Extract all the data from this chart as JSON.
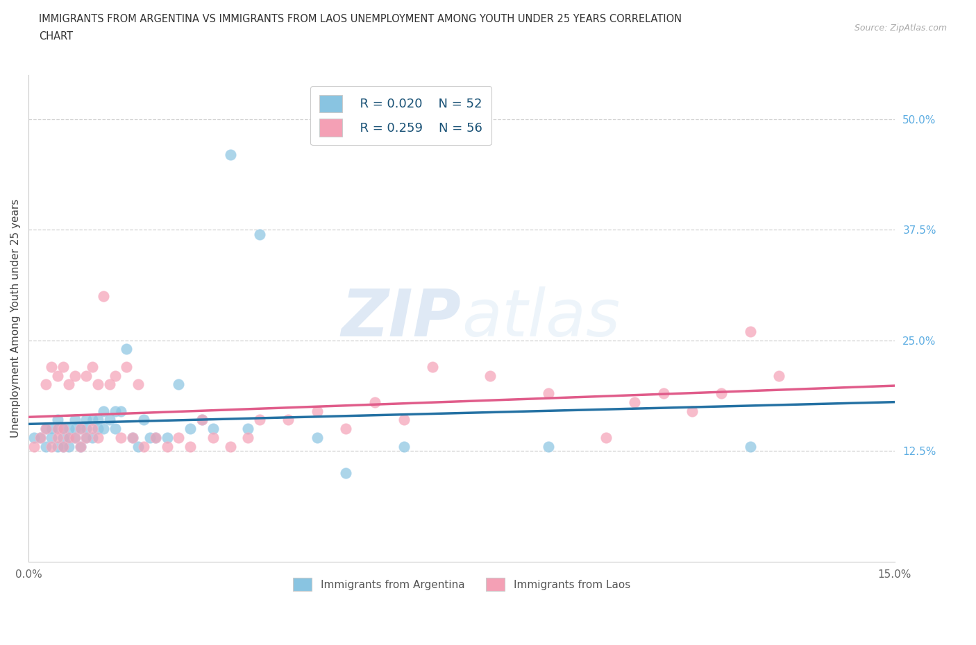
{
  "title_line1": "IMMIGRANTS FROM ARGENTINA VS IMMIGRANTS FROM LAOS UNEMPLOYMENT AMONG YOUTH UNDER 25 YEARS CORRELATION",
  "title_line2": "CHART",
  "source": "Source: ZipAtlas.com",
  "ylabel": "Unemployment Among Youth under 25 years",
  "xlim": [
    0.0,
    0.15
  ],
  "ylim": [
    0.0,
    0.55
  ],
  "color_argentina": "#89c4e1",
  "color_laos": "#f4a0b5",
  "line_color_argentina": "#2471a3",
  "line_color_laos": "#e05c8a",
  "legend_text_color": "#1a5276",
  "right_ytick_color": "#5dade2",
  "legend_R_argentina": "R = 0.020",
  "legend_N_argentina": "N = 52",
  "legend_R_laos": "R = 0.259",
  "legend_N_laos": "N = 56",
  "watermark": "ZIPatlas",
  "argentina_x": [
    0.001,
    0.002,
    0.003,
    0.003,
    0.004,
    0.004,
    0.005,
    0.005,
    0.005,
    0.006,
    0.006,
    0.006,
    0.007,
    0.007,
    0.007,
    0.008,
    0.008,
    0.008,
    0.009,
    0.009,
    0.01,
    0.01,
    0.01,
    0.011,
    0.011,
    0.012,
    0.012,
    0.013,
    0.013,
    0.014,
    0.015,
    0.015,
    0.016,
    0.017,
    0.018,
    0.019,
    0.02,
    0.021,
    0.022,
    0.024,
    0.026,
    0.028,
    0.03,
    0.032,
    0.035,
    0.038,
    0.04,
    0.05,
    0.055,
    0.065,
    0.09,
    0.125
  ],
  "argentina_y": [
    0.14,
    0.14,
    0.13,
    0.15,
    0.14,
    0.15,
    0.13,
    0.15,
    0.16,
    0.13,
    0.14,
    0.15,
    0.13,
    0.14,
    0.15,
    0.14,
    0.15,
    0.16,
    0.13,
    0.15,
    0.14,
    0.15,
    0.16,
    0.14,
    0.16,
    0.15,
    0.16,
    0.15,
    0.17,
    0.16,
    0.15,
    0.17,
    0.17,
    0.24,
    0.14,
    0.13,
    0.16,
    0.14,
    0.14,
    0.14,
    0.2,
    0.15,
    0.16,
    0.15,
    0.46,
    0.15,
    0.37,
    0.14,
    0.1,
    0.13,
    0.13,
    0.13
  ],
  "laos_x": [
    0.001,
    0.002,
    0.003,
    0.003,
    0.004,
    0.004,
    0.005,
    0.005,
    0.005,
    0.006,
    0.006,
    0.006,
    0.007,
    0.007,
    0.008,
    0.008,
    0.009,
    0.009,
    0.01,
    0.01,
    0.011,
    0.011,
    0.012,
    0.012,
    0.013,
    0.014,
    0.015,
    0.016,
    0.017,
    0.018,
    0.019,
    0.02,
    0.022,
    0.024,
    0.026,
    0.028,
    0.03,
    0.032,
    0.035,
    0.038,
    0.04,
    0.045,
    0.05,
    0.055,
    0.06,
    0.065,
    0.07,
    0.08,
    0.09,
    0.1,
    0.105,
    0.11,
    0.115,
    0.12,
    0.125,
    0.13
  ],
  "laos_y": [
    0.13,
    0.14,
    0.15,
    0.2,
    0.13,
    0.22,
    0.14,
    0.15,
    0.21,
    0.13,
    0.15,
    0.22,
    0.14,
    0.2,
    0.14,
    0.21,
    0.13,
    0.15,
    0.14,
    0.21,
    0.15,
    0.22,
    0.14,
    0.2,
    0.3,
    0.2,
    0.21,
    0.14,
    0.22,
    0.14,
    0.2,
    0.13,
    0.14,
    0.13,
    0.14,
    0.13,
    0.16,
    0.14,
    0.13,
    0.14,
    0.16,
    0.16,
    0.17,
    0.15,
    0.18,
    0.16,
    0.22,
    0.21,
    0.19,
    0.14,
    0.18,
    0.19,
    0.17,
    0.19,
    0.26,
    0.21
  ]
}
